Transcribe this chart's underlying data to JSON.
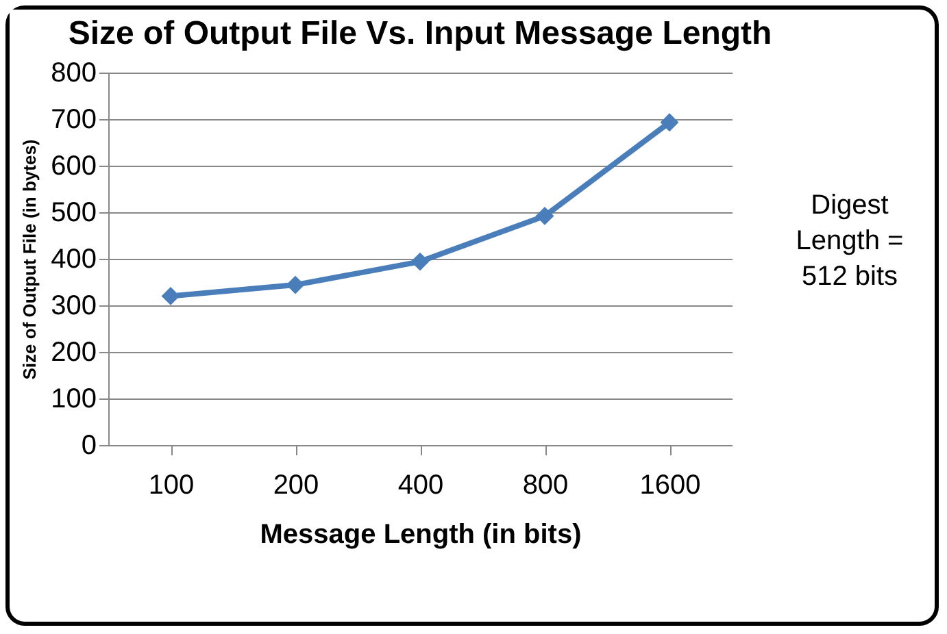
{
  "chart_data": {
    "type": "line",
    "title": "Size of Output File Vs. Input Message Length",
    "xlabel": "Message Length (in bits)",
    "ylabel": "Size of Output File (in bytes)",
    "categories": [
      "100",
      "200",
      "400",
      "800",
      "1600"
    ],
    "series": [
      {
        "color": "#4a7ebb",
        "values": [
          320,
          344,
          394,
          492,
          693
        ]
      }
    ],
    "ylim": [
      0,
      800
    ],
    "yticks": [
      0,
      100,
      200,
      300,
      400,
      500,
      600,
      700,
      800
    ],
    "grid": "y",
    "marker": "diamond",
    "line_style": "solid",
    "annotations": [
      "Digest Length = 512 bits"
    ]
  }
}
